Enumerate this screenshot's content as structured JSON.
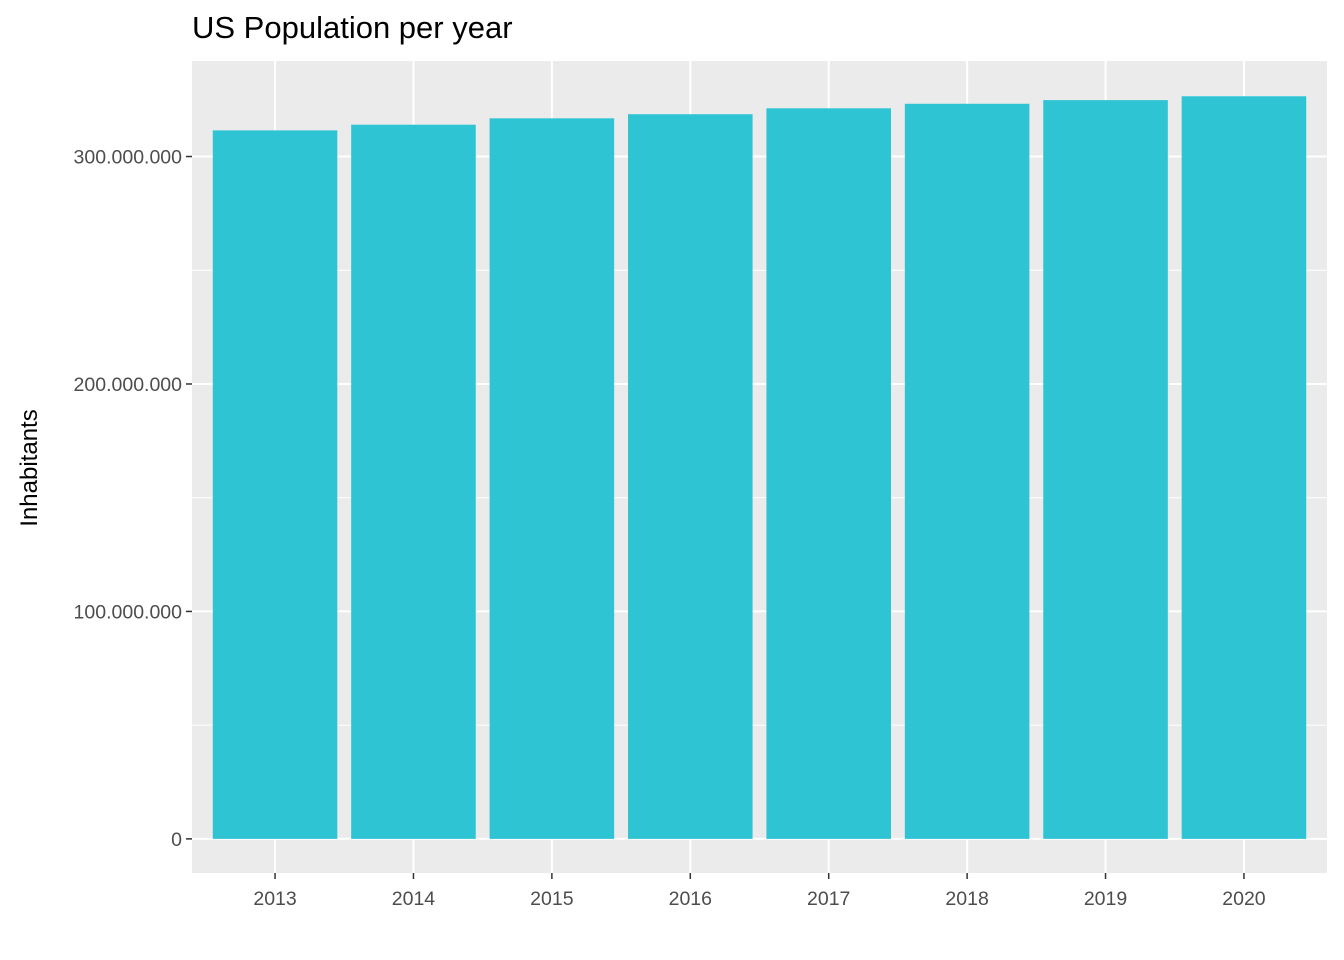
{
  "chart_data": {
    "type": "bar",
    "title": "US Population per year",
    "xlabel": "",
    "ylabel": "Inhabitants",
    "categories": [
      "2013",
      "2014",
      "2015",
      "2016",
      "2017",
      "2018",
      "2019",
      "2020"
    ],
    "values": [
      311500000,
      314000000,
      316800000,
      318600000,
      321200000,
      323200000,
      324800000,
      326500000
    ],
    "ylim": [
      -15000000,
      342000000
    ],
    "yticks": [
      0,
      100000000,
      200000000,
      300000000
    ],
    "ytick_labels": [
      "0",
      "100.000.000",
      "200.000.000",
      "300.000.000"
    ],
    "grid": true,
    "colors": {
      "bar": "#2EC4D4",
      "panel": "#EBEBEB",
      "grid": "#FFFFFF",
      "tick_text": "#4D4D4D",
      "tick_mark": "#333333"
    }
  }
}
